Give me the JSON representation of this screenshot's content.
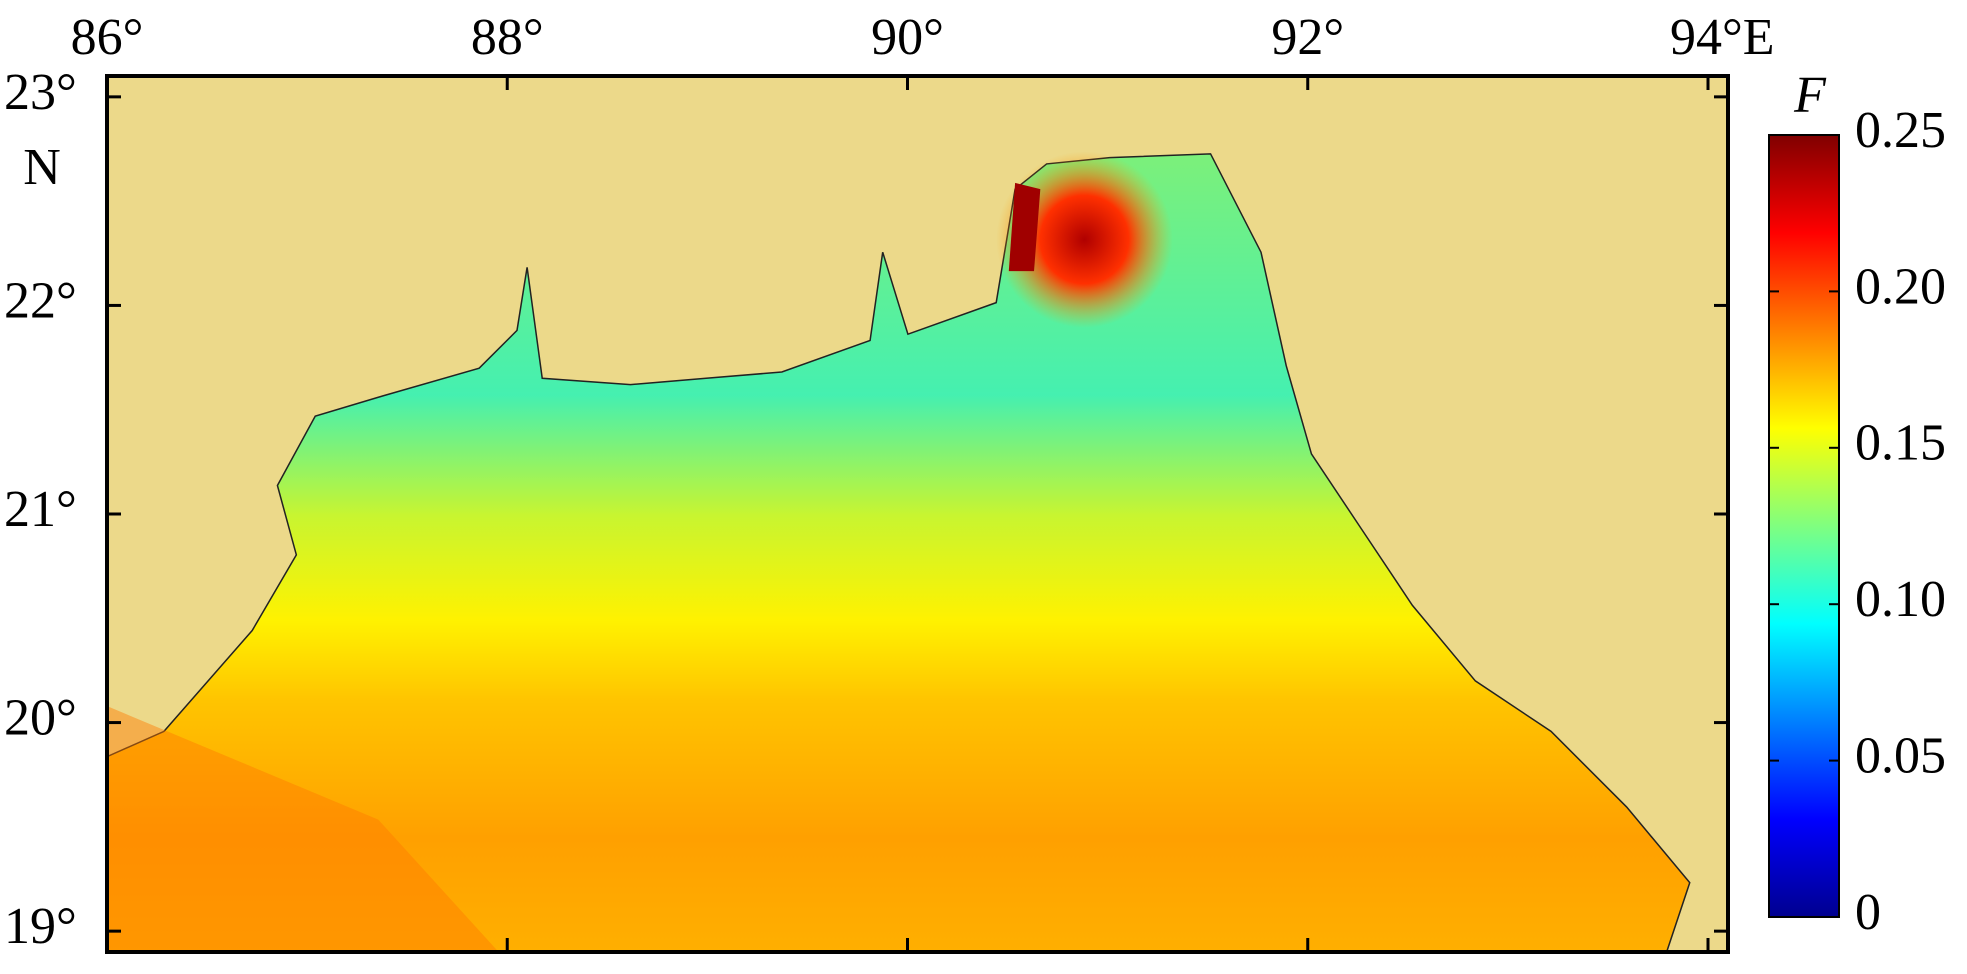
{
  "map": {
    "type": "contour-map",
    "xlim": [
      86,
      94.1
    ],
    "ylim": [
      18.9,
      23.1
    ],
    "xticks": [
      {
        "value": 86,
        "label": "86°"
      },
      {
        "value": 88,
        "label": "88°"
      },
      {
        "value": 90,
        "label": "90°"
      },
      {
        "value": 92,
        "label": "92°"
      },
      {
        "value": 94,
        "label": "94°E"
      }
    ],
    "yticks": [
      {
        "value": 19,
        "label": "19°"
      },
      {
        "value": 20,
        "label": "20°"
      },
      {
        "value": 21,
        "label": "21°"
      },
      {
        "value": 22,
        "label": "22°"
      },
      {
        "value": 23,
        "label": "23°"
      }
    ],
    "y_hemisphere": "N",
    "colorbar": {
      "label": "F",
      "clim": [
        0,
        0.25
      ],
      "ticks": [
        0,
        0.05,
        {
          "value": 0.1,
          "label": "0.10"
        },
        0.15,
        {
          "value": 0.2,
          "label": "0.20"
        },
        0.25
      ]
    }
  }
}
